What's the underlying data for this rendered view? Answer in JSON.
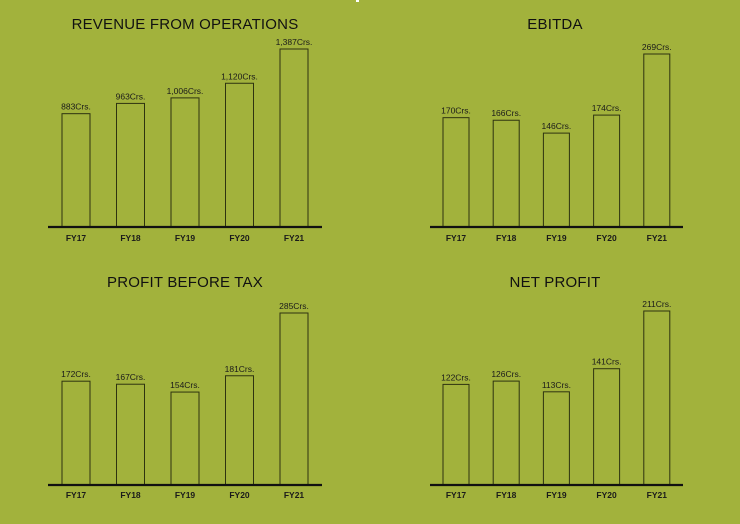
{
  "chart_data": [
    {
      "type": "bar",
      "title": "REVENUE FROM OPERATIONS",
      "categories": [
        "FY17",
        "FY18",
        "FY19",
        "FY20",
        "FY21"
      ],
      "values": [
        883,
        963,
        1006,
        1120,
        1387
      ],
      "value_labels": [
        "883Crs.",
        "963Crs.",
        "1,006Crs.",
        "1,120Crs.",
        "1,387Crs."
      ],
      "ylim": [
        0,
        1387
      ]
    },
    {
      "type": "bar",
      "title": "EBITDA",
      "categories": [
        "FY17",
        "FY18",
        "FY19",
        "FY20",
        "FY21"
      ],
      "values": [
        170,
        166,
        146,
        174,
        269
      ],
      "value_labels": [
        "170Crs.",
        "166Crs.",
        "146Crs.",
        "174Crs.",
        "269Crs."
      ],
      "ylim": [
        0,
        269
      ]
    },
    {
      "type": "bar",
      "title": "PROFIT BEFORE TAX",
      "categories": [
        "FY17",
        "FY18",
        "FY19",
        "FY20",
        "FY21"
      ],
      "values": [
        172,
        167,
        154,
        181,
        285
      ],
      "value_labels": [
        "172Crs.",
        "167Crs.",
        "154Crs.",
        "181Crs.",
        "285Crs."
      ],
      "ylim": [
        0,
        285
      ]
    },
    {
      "type": "bar",
      "title": "NET PROFIT",
      "categories": [
        "FY17",
        "FY18",
        "FY19",
        "FY20",
        "FY21"
      ],
      "values": [
        122,
        126,
        113,
        141,
        211
      ],
      "value_labels": [
        "122Crs.",
        "126Crs.",
        "113Crs.",
        "141Crs.",
        "211Crs."
      ],
      "ylim": [
        0,
        211
      ]
    }
  ],
  "colors": {
    "background": "#a2b23c",
    "bar_stroke": "#2e3310",
    "baseline": "#111111"
  }
}
